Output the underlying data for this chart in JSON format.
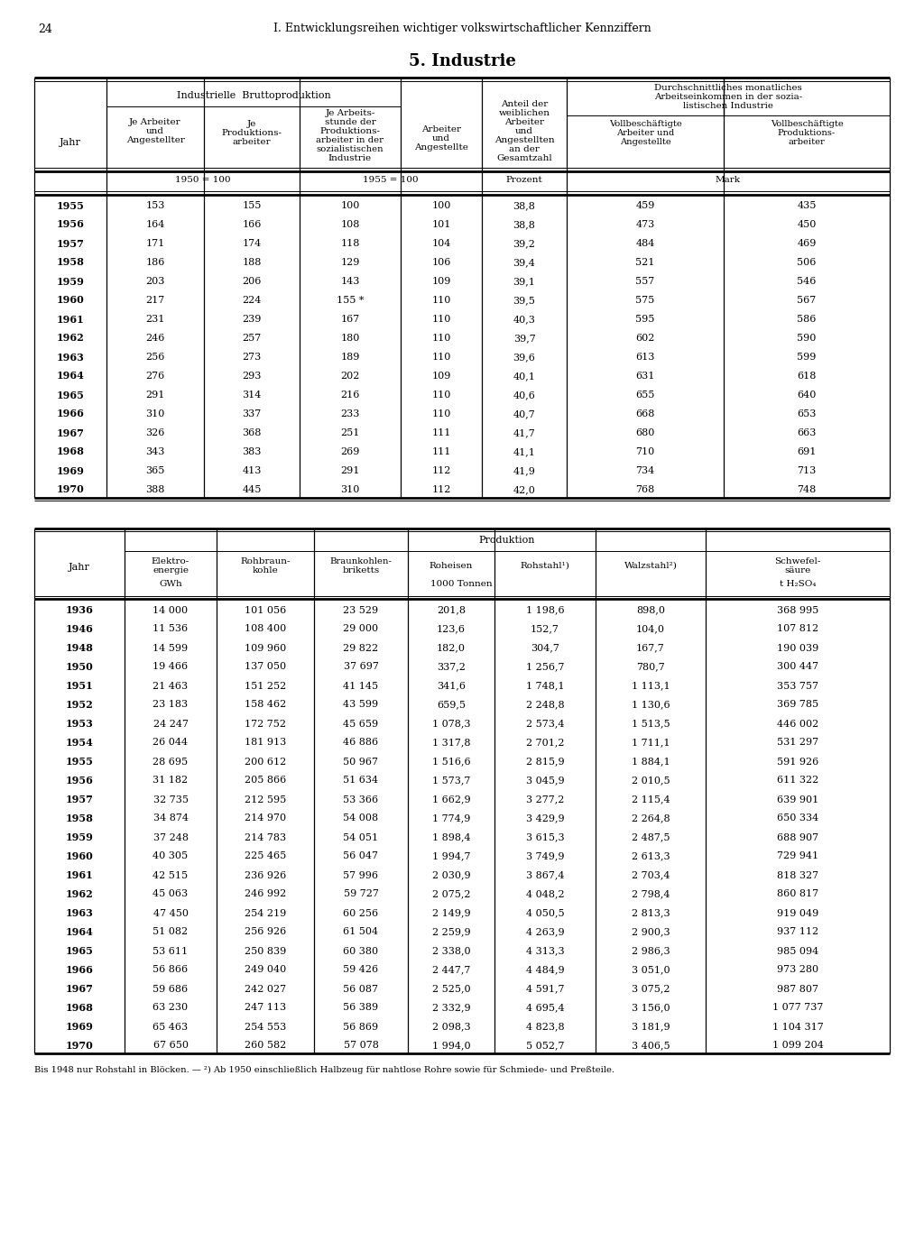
{
  "page_number": "24",
  "header": "I. Entwicklungsreihen wichtiger volkswirtschaftlicher Kennziffern",
  "title": "5. Industrie",
  "table1_data": [
    [
      "1955",
      "153",
      "155",
      "100",
      "100",
      "38,8",
      "459",
      "435"
    ],
    [
      "1956",
      "164",
      "166",
      "108",
      "101",
      "38,8",
      "473",
      "450"
    ],
    [
      "1957",
      "171",
      "174",
      "118",
      "104",
      "39,2",
      "484",
      "469"
    ],
    [
      "1958",
      "186",
      "188",
      "129",
      "106",
      "39,4",
      "521",
      "506"
    ],
    [
      "1959",
      "203",
      "206",
      "143",
      "109",
      "39,1",
      "557",
      "546"
    ],
    [
      "1960",
      "217",
      "224",
      "155 *",
      "110",
      "39,5",
      "575",
      "567"
    ],
    [
      "1961",
      "231",
      "239",
      "167",
      "110",
      "40,3",
      "595",
      "586"
    ],
    [
      "1962",
      "246",
      "257",
      "180",
      "110",
      "39,7",
      "602",
      "590"
    ],
    [
      "1963",
      "256",
      "273",
      "189",
      "110",
      "39,6",
      "613",
      "599"
    ],
    [
      "1964",
      "276",
      "293",
      "202",
      "109",
      "40,1",
      "631",
      "618"
    ],
    [
      "1965",
      "291",
      "314",
      "216",
      "110",
      "40,6",
      "655",
      "640"
    ],
    [
      "1966",
      "310",
      "337",
      "233",
      "110",
      "40,7",
      "668",
      "653"
    ],
    [
      "1967",
      "326",
      "368",
      "251",
      "111",
      "41,7",
      "680",
      "663"
    ],
    [
      "1968",
      "343",
      "383",
      "269",
      "111",
      "41,1",
      "710",
      "691"
    ],
    [
      "1969",
      "365",
      "413",
      "291",
      "112",
      "41,9",
      "734",
      "713"
    ],
    [
      "1970",
      "388",
      "445",
      "310",
      "112",
      "42,0",
      "768",
      "748"
    ]
  ],
  "table2_data": [
    [
      "1936",
      "14 000",
      "101 056",
      "23 529",
      "201,8",
      "1 198,6",
      "898,0",
      "368 995"
    ],
    [
      "1946",
      "11 536",
      "108 400",
      "29 000",
      "123,6",
      "152,7",
      "104,0",
      "107 812"
    ],
    [
      "1948",
      "14 599",
      "109 960",
      "29 822",
      "182,0",
      "304,7",
      "167,7",
      "190 039"
    ],
    [
      "1950",
      "19 466",
      "137 050",
      "37 697",
      "337,2",
      "1 256,7",
      "780,7",
      "300 447"
    ],
    [
      "1951",
      "21 463",
      "151 252",
      "41 145",
      "341,6",
      "1 748,1",
      "1 113,1",
      "353 757"
    ],
    [
      "1952",
      "23 183",
      "158 462",
      "43 599",
      "659,5",
      "2 248,8",
      "1 130,6",
      "369 785"
    ],
    [
      "1953",
      "24 247",
      "172 752",
      "45 659",
      "1 078,3",
      "2 573,4",
      "1 513,5",
      "446 002"
    ],
    [
      "1954",
      "26 044",
      "181 913",
      "46 886",
      "1 317,8",
      "2 701,2",
      "1 711,1",
      "531 297"
    ],
    [
      "1955",
      "28 695",
      "200 612",
      "50 967",
      "1 516,6",
      "2 815,9",
      "1 884,1",
      "591 926"
    ],
    [
      "1956",
      "31 182",
      "205 866",
      "51 634",
      "1 573,7",
      "3 045,9",
      "2 010,5",
      "611 322"
    ],
    [
      "1957",
      "32 735",
      "212 595",
      "53 366",
      "1 662,9",
      "3 277,2",
      "2 115,4",
      "639 901"
    ],
    [
      "1958",
      "34 874",
      "214 970",
      "54 008",
      "1 774,9",
      "3 429,9",
      "2 264,8",
      "650 334"
    ],
    [
      "1959",
      "37 248",
      "214 783",
      "54 051",
      "1 898,4",
      "3 615,3",
      "2 487,5",
      "688 907"
    ],
    [
      "1960",
      "40 305",
      "225 465",
      "56 047",
      "1 994,7",
      "3 749,9",
      "2 613,3",
      "729 941"
    ],
    [
      "1961",
      "42 515",
      "236 926",
      "57 996",
      "2 030,9",
      "3 867,4",
      "2 703,4",
      "818 327"
    ],
    [
      "1962",
      "45 063",
      "246 992",
      "59 727",
      "2 075,2",
      "4 048,2",
      "2 798,4",
      "860 817"
    ],
    [
      "1963",
      "47 450",
      "254 219",
      "60 256",
      "2 149,9",
      "4 050,5",
      "2 813,3",
      "919 049"
    ],
    [
      "1964",
      "51 082",
      "256 926",
      "61 504",
      "2 259,9",
      "4 263,9",
      "2 900,3",
      "937 112"
    ],
    [
      "1965",
      "53 611",
      "250 839",
      "60 380",
      "2 338,0",
      "4 313,3",
      "2 986,3",
      "985 094"
    ],
    [
      "1966",
      "56 866",
      "249 040",
      "59 426",
      "2 447,7",
      "4 484,9",
      "3 051,0",
      "973 280"
    ],
    [
      "1967",
      "59 686",
      "242 027",
      "56 087",
      "2 525,0",
      "4 591,7",
      "3 075,2",
      "987 807"
    ],
    [
      "1968",
      "63 230",
      "247 113",
      "56 389",
      "2 332,9",
      "4 695,4",
      "3 156,0",
      "1 077 737"
    ],
    [
      "1969",
      "65 463",
      "254 553",
      "56 869",
      "2 098,3",
      "4 823,8",
      "3 181,9",
      "1 104 317"
    ],
    [
      "1970",
      "67 650",
      "260 582",
      "57 078",
      "1 994,0",
      "5 052,7",
      "3 406,5",
      "1 099 204"
    ]
  ],
  "footnote": "Bis 1948 nur Rohstahl in Blöcken. — ²) Ab 1950 einschließlich Halbzeug für nahtlose Rohre sowie für Schmiede- und Preßteile."
}
